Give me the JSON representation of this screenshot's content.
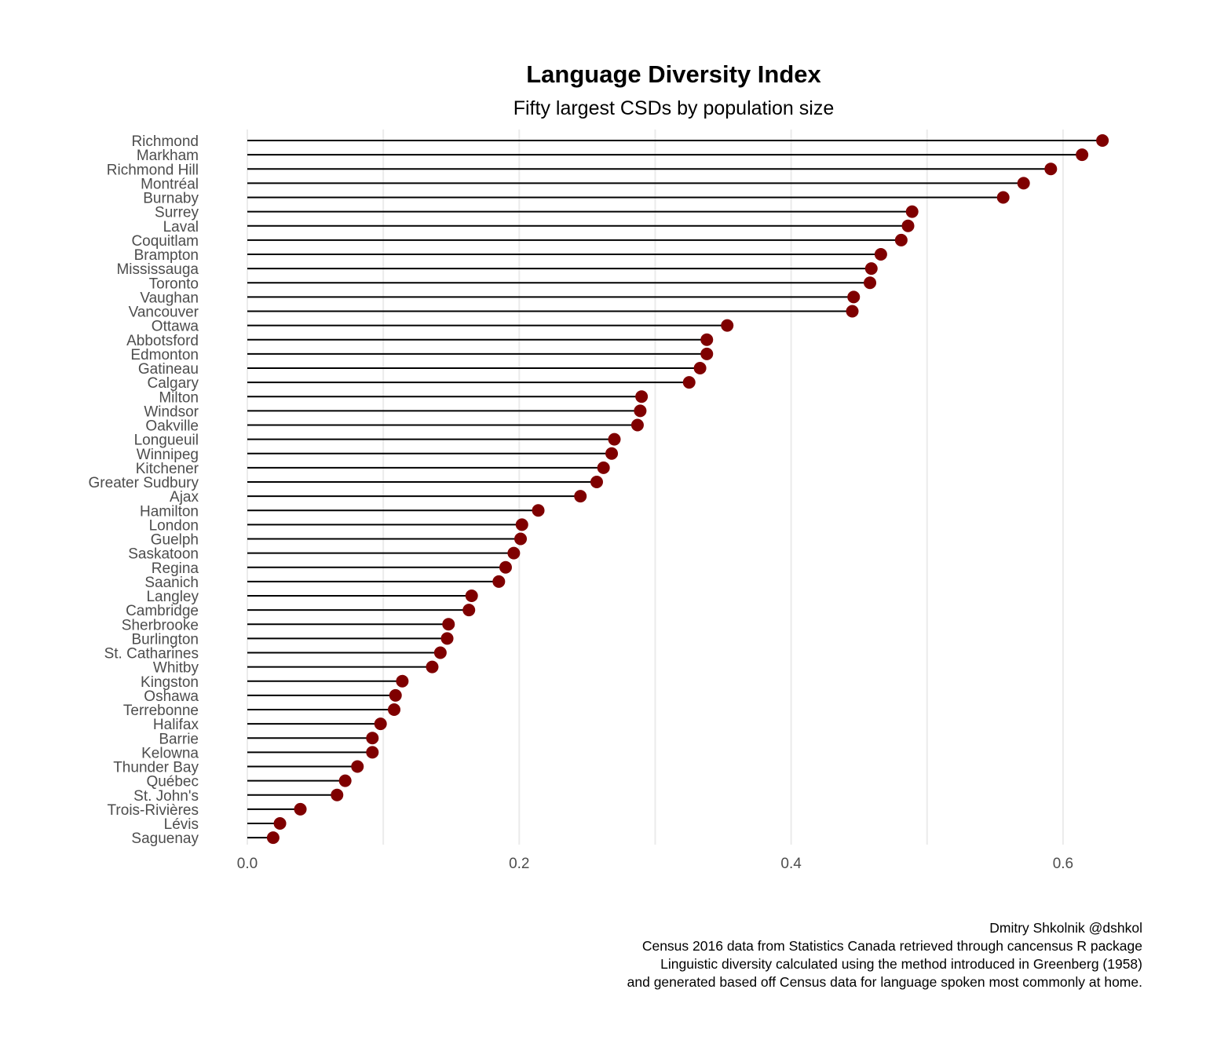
{
  "chart_data": {
    "type": "lollipop",
    "title": "Language Diversity Index",
    "subtitle": "Fifty largest CSDs by population size",
    "xlabel": "",
    "ylabel": "",
    "xlim": [
      -0.07,
      0.66
    ],
    "xticks": [
      0.0,
      0.2,
      0.4,
      0.6
    ],
    "xtick_labels": [
      "0.0",
      "0.2",
      "0.4",
      "0.6"
    ],
    "grid": true,
    "legend": "none",
    "point_color": "#7f0000",
    "stem_color": "#000000",
    "categories": [
      "Richmond",
      "Markham",
      "Richmond Hill",
      "Montréal",
      "Burnaby",
      "Surrey",
      "Laval",
      "Coquitlam",
      "Brampton",
      "Mississauga",
      "Toronto",
      "Vaughan",
      "Vancouver",
      "Ottawa",
      "Abbotsford",
      "Edmonton",
      "Gatineau",
      "Calgary",
      "Milton",
      "Windsor",
      "Oakville",
      "Longueuil",
      "Winnipeg",
      "Kitchener",
      "Greater Sudbury",
      "Ajax",
      "Hamilton",
      "London",
      "Guelph",
      "Saskatoon",
      "Regina",
      "Saanich",
      "Langley",
      "Cambridge",
      "Sherbrooke",
      "Burlington",
      "St. Catharines",
      "Whitby",
      "Kingston",
      "Oshawa",
      "Terrebonne",
      "Halifax",
      "Barrie",
      "Kelowna",
      "Thunder Bay",
      "Québec",
      "St. John's",
      "Trois-Rivières",
      "Lévis",
      "Saguenay"
    ],
    "values": [
      0.629,
      0.614,
      0.591,
      0.571,
      0.556,
      0.489,
      0.486,
      0.481,
      0.466,
      0.459,
      0.458,
      0.446,
      0.445,
      0.353,
      0.338,
      0.338,
      0.333,
      0.325,
      0.29,
      0.289,
      0.287,
      0.27,
      0.268,
      0.262,
      0.257,
      0.245,
      0.214,
      0.202,
      0.201,
      0.196,
      0.19,
      0.185,
      0.165,
      0.163,
      0.148,
      0.147,
      0.142,
      0.136,
      0.114,
      0.109,
      0.108,
      0.098,
      0.092,
      0.092,
      0.081,
      0.072,
      0.066,
      0.039,
      0.024,
      0.019
    ]
  },
  "caption": {
    "lines": [
      "Dmitry Shkolnik @dshkol",
      "Census 2016 data from Statistics Canada retrieved through cancensus R package",
      "Linguistic diversity calculated using the method introduced in Greenberg (1958)",
      "and generated based off Census data for language spoken most commonly at home."
    ]
  }
}
